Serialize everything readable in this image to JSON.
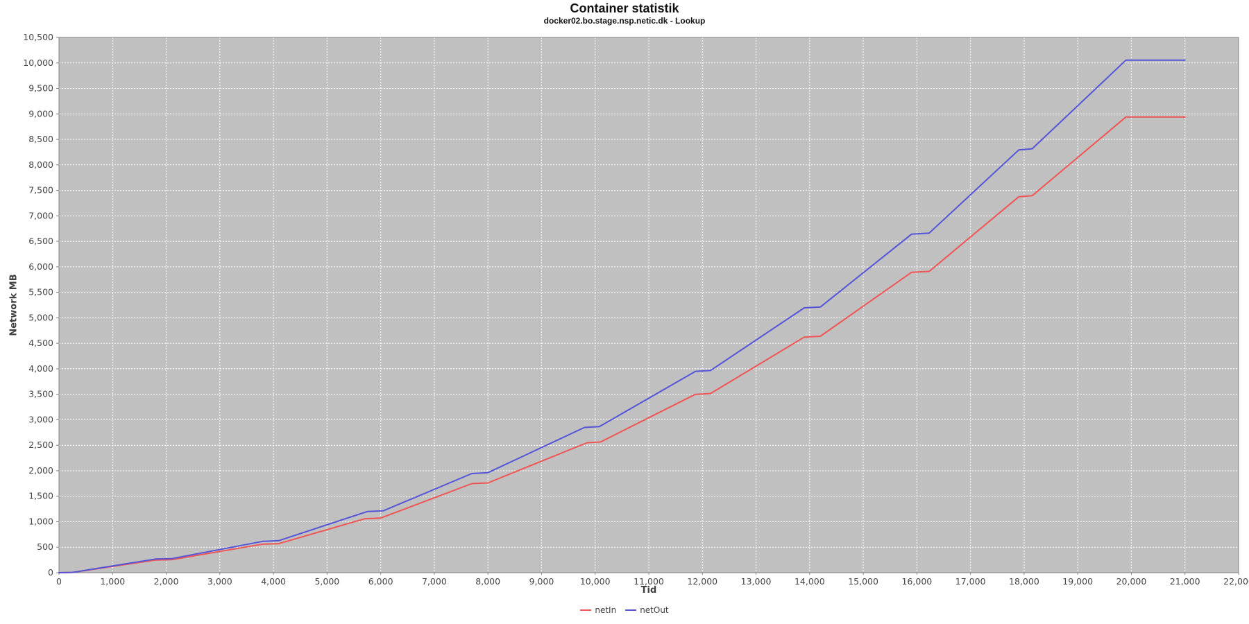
{
  "header": {
    "title": "Container statistik",
    "subtitle": "docker02.bo.stage.nsp.netic.dk - Lookup"
  },
  "chart_data": {
    "type": "line",
    "title": "Container statistik",
    "subtitle": "docker02.bo.stage.nsp.netic.dk - Lookup",
    "xlabel": "Tid",
    "ylabel": "Network MB",
    "xlim": [
      0,
      22000
    ],
    "ylim": [
      0,
      10500
    ],
    "x_tick_interval": 1000,
    "y_tick_interval": 500,
    "x_ticks": [
      0,
      1000,
      2000,
      3000,
      4000,
      5000,
      6000,
      7000,
      8000,
      9000,
      10000,
      11000,
      12000,
      13000,
      14000,
      15000,
      16000,
      17000,
      18000,
      19000,
      20000,
      21000,
      22000
    ],
    "y_ticks": [
      0,
      500,
      1000,
      1500,
      2000,
      2500,
      3000,
      3500,
      4000,
      4500,
      5000,
      5500,
      6000,
      6500,
      7000,
      7500,
      8000,
      8500,
      9000,
      9500,
      10000,
      10500
    ],
    "grid": true,
    "legend_position": "bottom",
    "colors": {
      "plot_background": "#c0c0c0",
      "gridline": "#ffffff",
      "plot_border": "#808080",
      "tick_label": "#444444",
      "netIn": "#f05454",
      "netOut": "#5454d8"
    },
    "series": [
      {
        "name": "netIn",
        "color": "#f05454",
        "points": [
          [
            0,
            0
          ],
          [
            250,
            5
          ],
          [
            1800,
            248
          ],
          [
            2100,
            254
          ],
          [
            3800,
            560
          ],
          [
            4100,
            570
          ],
          [
            5700,
            1058
          ],
          [
            6000,
            1072
          ],
          [
            7700,
            1748
          ],
          [
            8000,
            1762
          ],
          [
            9850,
            2550
          ],
          [
            10100,
            2564
          ],
          [
            11870,
            3500
          ],
          [
            12150,
            3514
          ],
          [
            13900,
            4622
          ],
          [
            14200,
            4638
          ],
          [
            15900,
            5892
          ],
          [
            16230,
            5910
          ],
          [
            17900,
            7375
          ],
          [
            18150,
            7395
          ],
          [
            19900,
            8940
          ],
          [
            21000,
            8940
          ]
        ]
      },
      {
        "name": "netOut",
        "color": "#5454d8",
        "points": [
          [
            0,
            0
          ],
          [
            250,
            5
          ],
          [
            1800,
            268
          ],
          [
            2100,
            275
          ],
          [
            3800,
            615
          ],
          [
            4100,
            628
          ],
          [
            5750,
            1200
          ],
          [
            6050,
            1215
          ],
          [
            7700,
            1945
          ],
          [
            8000,
            1962
          ],
          [
            9800,
            2850
          ],
          [
            10080,
            2866
          ],
          [
            11870,
            3950
          ],
          [
            12150,
            3966
          ],
          [
            13900,
            5195
          ],
          [
            14200,
            5212
          ],
          [
            15900,
            6640
          ],
          [
            16230,
            6662
          ],
          [
            17900,
            8292
          ],
          [
            18150,
            8315
          ],
          [
            19900,
            10055
          ],
          [
            21000,
            10055
          ]
        ]
      }
    ]
  }
}
